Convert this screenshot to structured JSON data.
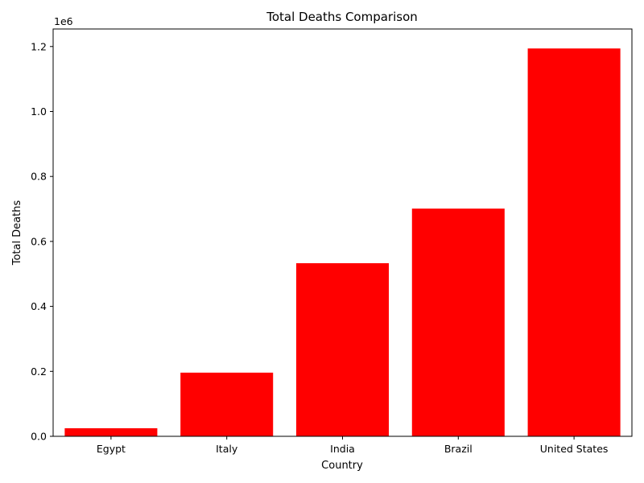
{
  "chart_data": {
    "type": "bar",
    "title": "Total Deaths Comparison",
    "xlabel": "Country",
    "ylabel": "Total Deaths",
    "categories": [
      "Egypt",
      "Italy",
      "India",
      "Brazil",
      "United States"
    ],
    "values": [
      24800,
      196000,
      533000,
      701000,
      1194000
    ],
    "ylim": [
      0,
      1254000
    ],
    "yticks": [
      0,
      200000,
      400000,
      600000,
      800000,
      1000000,
      1200000
    ],
    "ytick_labels": [
      "0.0",
      "0.2",
      "0.4",
      "0.6",
      "0.8",
      "1.0",
      "1.2"
    ],
    "y_offset_label": "1e6",
    "bar_color": "#ff0000",
    "grid": false,
    "legend": "none"
  }
}
